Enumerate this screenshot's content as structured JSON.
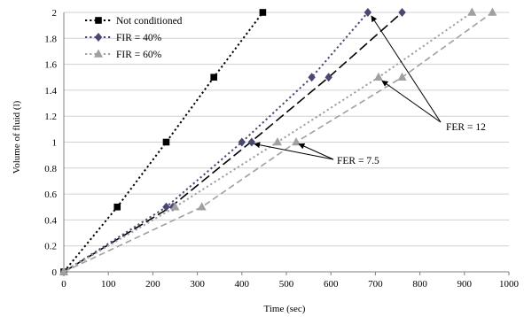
{
  "chart_data": {
    "type": "line",
    "xlabel": "Time (sec)",
    "ylabel": "Volume of fluid (l)",
    "xlim": [
      0,
      1000
    ],
    "ylim": [
      0,
      2
    ],
    "xticks": [
      "0",
      "100",
      "200",
      "300",
      "400",
      "500",
      "600",
      "700",
      "800",
      "900",
      "1000"
    ],
    "yticks": [
      "0",
      "0.2",
      "0.4",
      "0.6",
      "0.8",
      "1",
      "1.2",
      "1.4",
      "1.6",
      "1.8",
      "2"
    ],
    "grid": true,
    "legend_position": "top-left",
    "series": [
      {
        "name": "Not conditioned",
        "color": "#000000",
        "marker": "square",
        "line_style": "dotted",
        "points": [
          [
            0,
            0
          ],
          [
            120,
            0.5
          ],
          [
            230,
            1.0
          ],
          [
            337,
            1.5
          ],
          [
            447,
            2.0
          ]
        ]
      },
      {
        "name": "",
        "color": "#000000",
        "marker": "none",
        "line_style": "long-dash",
        "points": [
          [
            0,
            0
          ],
          [
            240,
            0.5
          ],
          [
            420,
            1.0
          ],
          [
            595,
            1.5
          ],
          [
            760,
            2.0
          ]
        ]
      },
      {
        "name": "FIR = 40%",
        "color": "#484870",
        "marker": "diamond",
        "line_style": "dotted",
        "points": [
          [
            0,
            0
          ],
          [
            230,
            0.5
          ],
          [
            400,
            1.0
          ],
          [
            557,
            1.5
          ],
          [
            683,
            2.0
          ]
        ]
      },
      {
        "name": "",
        "color": "#484870",
        "marker": "diamond",
        "line_style": "none",
        "points": [
          [
            245,
            0.5
          ],
          [
            422,
            1.0
          ],
          [
            595,
            1.5
          ],
          [
            760,
            2.0
          ]
        ]
      },
      {
        "name": "FIR = 60%",
        "color": "#a0a0a0",
        "marker": "triangle",
        "line_style": "dotted",
        "points": [
          [
            0,
            0
          ],
          [
            250,
            0.5
          ],
          [
            480,
            1.0
          ],
          [
            707,
            1.5
          ],
          [
            917,
            2.0
          ]
        ]
      },
      {
        "name": "",
        "color": "#a0a0a0",
        "marker": "triangle",
        "line_style": "dashed",
        "points": [
          [
            0,
            0
          ],
          [
            310,
            0.5
          ],
          [
            522,
            1.0
          ],
          [
            760,
            1.5
          ],
          [
            963,
            2.0
          ]
        ]
      }
    ],
    "annotations": [
      {
        "text": "FER = 12",
        "arrows_to": [
          [
            683,
            2.0
          ],
          [
            707,
            1.5
          ]
        ]
      },
      {
        "text": "FER = 7.5",
        "arrows_to": [
          [
            422,
            1.0
          ],
          [
            522,
            1.0
          ]
        ]
      }
    ]
  }
}
